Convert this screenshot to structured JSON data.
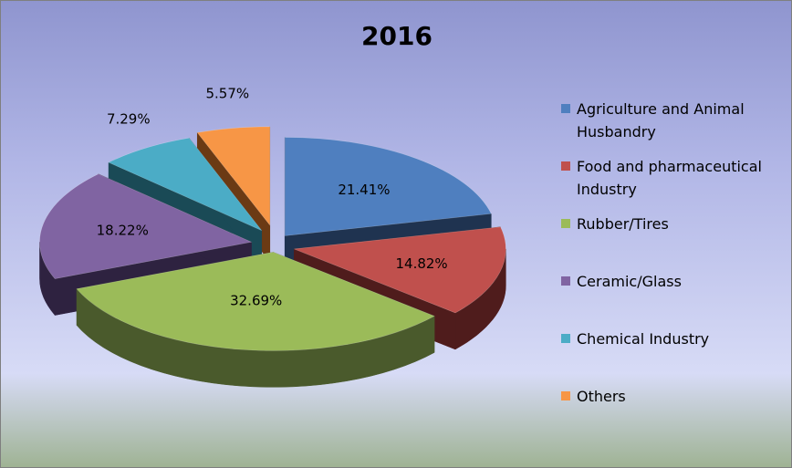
{
  "chart_data": {
    "type": "pie",
    "title": "2016",
    "categories": [
      "Agriculture and Animal Husbandry",
      "Food and pharmaceutical Industry",
      "Rubber/Tires",
      "Ceramic/Glass",
      "Chemical Industry",
      "Others"
    ],
    "values": [
      21.41,
      14.82,
      32.69,
      18.22,
      7.29,
      5.57
    ],
    "value_labels": [
      "21.41%",
      "14.82%",
      "32.69%",
      "18.22%",
      "7.29%",
      "5.57%"
    ],
    "colors": [
      "#4f7fbf",
      "#c0504d",
      "#9bbb59",
      "#8064a2",
      "#4bacc6",
      "#f79646"
    ],
    "side_colors": [
      "#1f3350",
      "#4f1c1c",
      "#4a5a2c",
      "#2e2240",
      "#1a4a56",
      "#6b3a14"
    ],
    "legend_position": "right",
    "exploded": true,
    "three_d": true
  }
}
